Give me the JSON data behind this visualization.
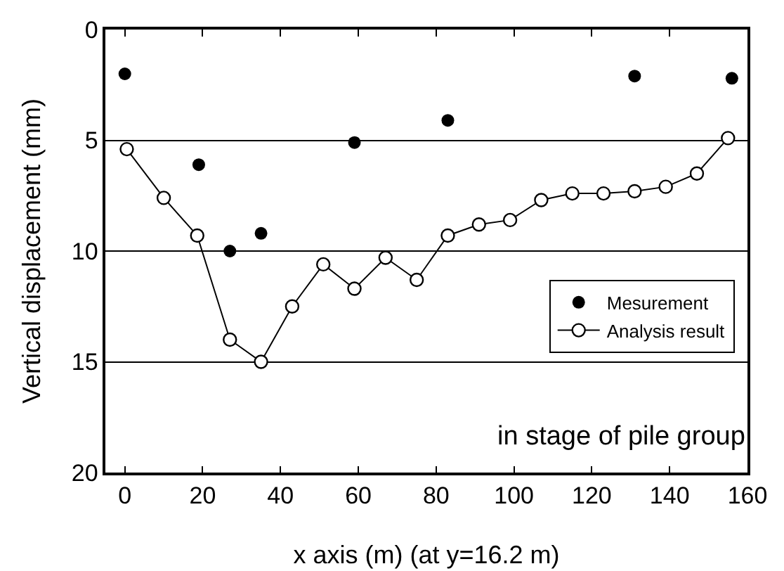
{
  "chart_data": {
    "type": "line",
    "xlabel": "x axis (m) (at y=16.2 m)",
    "ylabel": "Vertical displacement (mm)",
    "xlim": [
      -5,
      160
    ],
    "xticks": [
      0,
      20,
      40,
      60,
      80,
      100,
      120,
      140,
      160
    ],
    "ylim": [
      20,
      0
    ],
    "yticks": [
      0,
      5,
      10,
      15,
      20
    ],
    "grid": "y",
    "legend": "bottom right",
    "marker": "circle",
    "line_style": "solid",
    "annotations": [
      "in stage of pile group"
    ],
    "series": [
      {
        "name": "Mesurement",
        "type": "scatter",
        "color": "#000000",
        "x": [
          0,
          19,
          27,
          35,
          59,
          83,
          131,
          156
        ],
        "values": [
          2,
          6.1,
          10,
          9.2,
          5.1,
          4.1,
          2.1,
          2.2
        ]
      },
      {
        "name": "Analysis result",
        "color": "#000000",
        "x": [
          0.5,
          10,
          18.6,
          27,
          35,
          43,
          51,
          59,
          67,
          75,
          83,
          91,
          99,
          107,
          115,
          123,
          131,
          139,
          147,
          155
        ],
        "values": [
          5.4,
          7.6,
          9.3,
          14,
          15,
          12.5,
          10.6,
          11.7,
          10.3,
          11.3,
          9.3,
          8.8,
          8.6,
          7.7,
          7.4,
          7.4,
          7.3,
          7.1,
          6.5,
          4.9
        ]
      }
    ]
  }
}
